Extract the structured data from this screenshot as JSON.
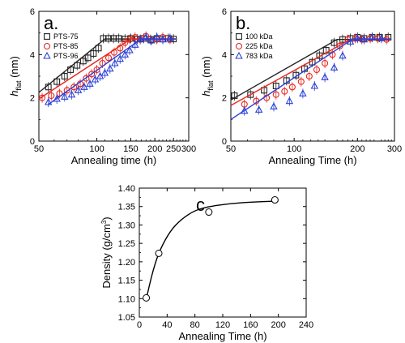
{
  "chart_data": [
    {
      "type": "scatter",
      "panel_label": "a.",
      "xlabel": "Annealing time (h)",
      "ylabel_main": "h",
      "ylabel_sub": "flat",
      "ylabel_unit": "(nm)",
      "xscale": "log",
      "xlim": [
        50,
        300
      ],
      "ylim": [
        0,
        6
      ],
      "xticks": [
        50,
        100,
        150,
        200,
        250,
        300
      ],
      "xtick_labels": [
        "50",
        "100",
        "150",
        "200",
        "250",
        "300"
      ],
      "yticks": [
        0,
        2,
        4,
        6
      ],
      "ytick_labels": [
        "0",
        "2",
        "4",
        "6"
      ],
      "legend_position": "top-left",
      "series": [
        {
          "name": "PTS-75",
          "marker": "square",
          "color": "#222222",
          "x": [
            56,
            62,
            68,
            73,
            79,
            85,
            90,
            96,
            102,
            108,
            115,
            122,
            130,
            140,
            150,
            162,
            175,
            190,
            205,
            220,
            235,
            250
          ],
          "y": [
            2.5,
            2.75,
            3.0,
            3.3,
            3.5,
            3.7,
            3.85,
            4.05,
            4.3,
            4.75,
            4.75,
            4.75,
            4.75,
            4.72,
            4.75,
            4.72,
            4.75,
            4.7,
            4.75,
            4.72,
            4.75,
            4.72
          ],
          "fit": {
            "x": [
              50,
              110,
              260
            ],
            "y": [
              2.25,
              4.72,
              4.72
            ]
          }
        },
        {
          "name": "PTS-85",
          "marker": "circle",
          "color": "#e8261e",
          "x": [
            52,
            58,
            64,
            70,
            76,
            82,
            88,
            94,
            100,
            107,
            115,
            123,
            132,
            140,
            148,
            158,
            168,
            180,
            192,
            205,
            220,
            240
          ],
          "y": [
            2.0,
            2.1,
            2.2,
            2.35,
            2.5,
            2.65,
            2.9,
            3.1,
            3.3,
            3.6,
            3.85,
            4.1,
            4.3,
            4.55,
            4.7,
            4.8,
            4.7,
            4.85,
            4.65,
            4.7,
            4.8,
            4.7
          ],
          "fit": {
            "x": [
              50,
              150,
              260
            ],
            "y": [
              1.95,
              4.72,
              4.72
            ]
          }
        },
        {
          "name": "PTS-96",
          "marker": "triangle",
          "color": "#2a3fd6",
          "x": [
            56,
            62,
            68,
            74,
            80,
            86,
            92,
            98,
            104,
            110,
            117,
            124,
            132,
            140,
            148,
            158,
            168,
            180,
            192,
            205,
            220,
            240
          ],
          "y": [
            1.8,
            1.95,
            2.05,
            2.15,
            2.35,
            2.5,
            2.65,
            2.85,
            3.0,
            3.15,
            3.35,
            3.6,
            3.8,
            4.0,
            4.2,
            4.45,
            4.7,
            4.8,
            4.65,
            4.8,
            4.7,
            4.75
          ],
          "fit": {
            "x": [
              56,
              170,
              260
            ],
            "y": [
              1.7,
              4.72,
              4.72
            ]
          }
        }
      ]
    },
    {
      "type": "scatter",
      "panel_label": "b.",
      "xlabel": "Annealing Time (h)",
      "ylabel_main": "h",
      "ylabel_sub": "flat",
      "ylabel_unit": "(nm)",
      "xscale": "log",
      "xlim": [
        50,
        300
      ],
      "ylim": [
        0,
        6
      ],
      "xticks": [
        50,
        100,
        200,
        300
      ],
      "xtick_labels": [
        "50",
        "100",
        "200",
        "300"
      ],
      "yticks": [
        0,
        2,
        4,
        6
      ],
      "ytick_labels": [
        "0",
        "2",
        "4",
        "6"
      ],
      "legend_position": "top-left",
      "series": [
        {
          "name": "100 kDa",
          "marker": "square",
          "color": "#222222",
          "x": [
            52,
            62,
            72,
            82,
            92,
            102,
            112,
            122,
            132,
            142,
            155,
            170,
            185,
            200,
            215,
            235,
            255,
            280
          ],
          "y": [
            2.1,
            2.15,
            2.35,
            2.55,
            2.8,
            3.05,
            3.35,
            3.65,
            3.95,
            4.2,
            4.55,
            4.7,
            4.75,
            4.8,
            4.75,
            4.8,
            4.8,
            4.8
          ],
          "fit": {
            "x": [
              50,
              160,
              290
            ],
            "y": [
              1.9,
              4.7,
              4.7
            ]
          }
        },
        {
          "name": "225 kDa",
          "marker": "circle",
          "color": "#e8261e",
          "x": [
            58,
            66,
            74,
            82,
            90,
            98,
            108,
            118,
            128,
            140,
            152,
            165,
            180,
            195,
            210,
            230,
            250,
            275
          ],
          "y": [
            1.7,
            1.85,
            2.0,
            2.15,
            2.3,
            2.5,
            2.75,
            3.0,
            3.3,
            3.6,
            4.0,
            4.4,
            4.7,
            4.75,
            4.7,
            4.75,
            4.75,
            4.7
          ],
          "fit": {
            "x": [
              50,
              185,
              290
            ],
            "y": [
              1.65,
              4.7,
              4.7
            ]
          }
        },
        {
          "name": "783 kDa",
          "marker": "triangle",
          "color": "#2a3fd6",
          "x": [
            58,
            68,
            80,
            95,
            110,
            125,
            140,
            155,
            170,
            185,
            200,
            215,
            235,
            260
          ],
          "y": [
            1.4,
            1.45,
            1.6,
            1.85,
            2.2,
            2.55,
            2.95,
            3.4,
            3.95,
            4.6,
            4.75,
            4.7,
            4.8,
            4.75
          ],
          "fit": {
            "x": [
              50,
              190,
              290
            ],
            "y": [
              1.0,
              4.72,
              4.72
            ]
          }
        }
      ]
    },
    {
      "type": "scatter",
      "panel_label": "c.",
      "xlabel": "Annealing Time (h)",
      "ylabel": "Density (g/cm",
      "ylabel_sup": "3",
      "ylabel_close": ")",
      "xscale": "linear",
      "xlim": [
        0,
        240
      ],
      "ylim": [
        1.05,
        1.4
      ],
      "xticks": [
        0,
        40,
        80,
        120,
        160,
        200,
        240
      ],
      "xtick_labels": [
        "0",
        "40",
        "80",
        "120",
        "160",
        "200",
        "240"
      ],
      "yticks": [
        1.05,
        1.1,
        1.15,
        1.2,
        1.25,
        1.3,
        1.35,
        1.4
      ],
      "ytick_labels": [
        "1.05",
        "1.10",
        "1.15",
        "1.20",
        "1.25",
        "1.30",
        "1.35",
        "1.40"
      ],
      "series": [
        {
          "marker": "open-circle",
          "color": "#000000",
          "x": [
            10,
            28,
            100,
            195
          ],
          "y": [
            1.102,
            1.223,
            1.335,
            1.368
          ],
          "fit": {
            "x": [
              10,
              20,
              30,
              45,
              60,
              80,
              100,
              130,
              160,
              200
            ],
            "y": [
              1.1,
              1.18,
              1.235,
              1.285,
              1.315,
              1.34,
              1.35,
              1.358,
              1.362,
              1.365
            ]
          }
        }
      ]
    }
  ]
}
